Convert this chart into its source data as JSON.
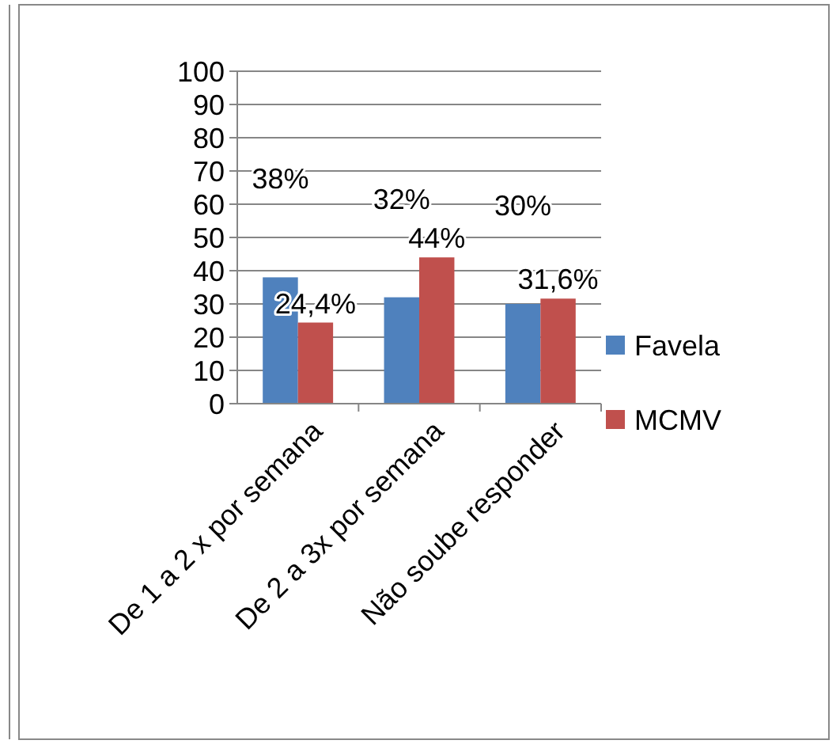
{
  "chart_data": {
    "type": "bar",
    "categories": [
      "De 1 a 2 x por semana",
      "De 2 a 3x por semana",
      "Não soube responder"
    ],
    "series": [
      {
        "name": "Favela",
        "color": "#4f81bd",
        "values": [
          38,
          32,
          30
        ],
        "value_labels": [
          "38%",
          "32%",
          "30%"
        ]
      },
      {
        "name": "MCMV",
        "color": "#c0504d",
        "values": [
          24.4,
          44,
          31.6
        ],
        "value_labels": [
          "24,4%",
          "44%",
          "31,6%"
        ]
      }
    ],
    "ylim": [
      0,
      100
    ],
    "yticks": [
      0,
      10,
      20,
      30,
      40,
      50,
      60,
      70,
      80,
      90,
      100
    ],
    "grid": "y",
    "legend": "right"
  }
}
